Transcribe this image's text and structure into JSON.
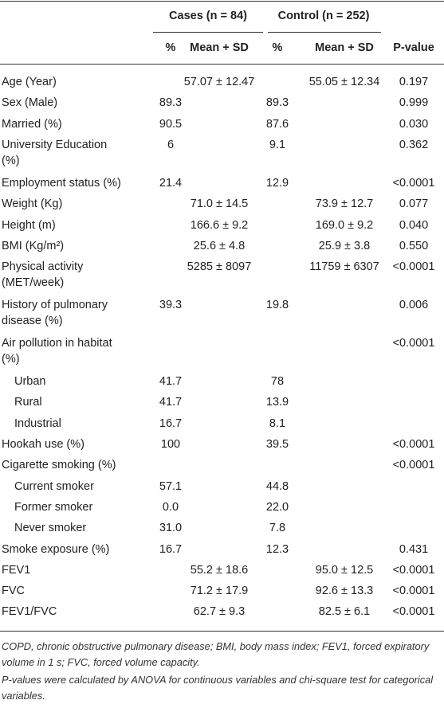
{
  "table": {
    "group_headers": [
      "Cases (n = 84)",
      "Control (n = 252)"
    ],
    "headers": [
      "%",
      "Mean + SD",
      "%",
      "Mean + SD",
      "P-value"
    ],
    "rows": [
      {
        "label": [
          "Age (Year)"
        ],
        "cells": [
          null,
          "57.07 ± 12.47",
          null,
          "55.05 ± 12.34",
          "0.197"
        ]
      },
      {
        "label": [
          "Sex (Male)"
        ],
        "cells": [
          "89.3",
          null,
          "89.3",
          null,
          "0.999"
        ]
      },
      {
        "label": [
          "Married (%)"
        ],
        "cells": [
          "90.5",
          null,
          "87.6",
          null,
          "0.030"
        ]
      },
      {
        "label": [
          "University Education",
          "(%)"
        ],
        "cells": [
          "6",
          null,
          "9.1",
          null,
          "0.362"
        ]
      },
      {
        "label": [
          "Employment status (%)"
        ],
        "cells": [
          "21.4",
          null,
          "12.9",
          null,
          "<0.0001"
        ]
      },
      {
        "label": [
          "Weight (Kg)"
        ],
        "cells": [
          null,
          "71.0 ± 14.5",
          null,
          "73.9 ± 12.7",
          "0.077"
        ]
      },
      {
        "label": [
          "Height (m)"
        ],
        "cells": [
          null,
          "166.6 ± 9.2",
          null,
          "169.0 ± 9.2",
          "0.040"
        ]
      },
      {
        "label": [
          "BMI (Kg/m²)"
        ],
        "cells": [
          null,
          "25.6 ± 4.8",
          null,
          "25.9 ± 3.8",
          "0.550"
        ]
      },
      {
        "label": [
          "Physical activity",
          "(MET/week)"
        ],
        "cells": [
          null,
          "5285 ± 8097",
          null,
          "11759 ± 6307",
          "<0.0001"
        ]
      },
      {
        "label": [
          "History of pulmonary",
          "disease (%)"
        ],
        "cells": [
          "39.3",
          null,
          "19.8",
          null,
          "0.006"
        ]
      },
      {
        "label": [
          "Air pollution in habitat",
          "(%)"
        ],
        "cells": [
          null,
          null,
          null,
          null,
          "<0.0001"
        ]
      },
      {
        "label": [
          "Urban"
        ],
        "indent": true,
        "cells": [
          "41.7",
          null,
          "78",
          null,
          null
        ]
      },
      {
        "label": [
          "Rural"
        ],
        "indent": true,
        "cells": [
          "41.7",
          null,
          "13.9",
          null,
          null
        ]
      },
      {
        "label": [
          "Industrial"
        ],
        "indent": true,
        "cells": [
          "16.7",
          null,
          "8.1",
          null,
          null
        ]
      },
      {
        "label": [
          "Hookah use (%)"
        ],
        "cells": [
          "100",
          null,
          "39.5",
          null,
          "<0.0001"
        ]
      },
      {
        "label": [
          "Cigarette smoking (%)"
        ],
        "cells": [
          null,
          null,
          null,
          null,
          "<0.0001"
        ]
      },
      {
        "label": [
          "Current smoker"
        ],
        "indent": true,
        "cells": [
          "57.1",
          null,
          "44.8",
          null,
          null
        ]
      },
      {
        "label": [
          "Former smoker"
        ],
        "indent": true,
        "cells": [
          "0.0",
          null,
          "22.0",
          null,
          null
        ]
      },
      {
        "label": [
          "Never smoker"
        ],
        "indent": true,
        "cells": [
          "31.0",
          null,
          "7.8",
          null,
          null
        ]
      },
      {
        "label": [
          "Smoke exposure (%)"
        ],
        "cells": [
          "16.7",
          null,
          "12.3",
          null,
          "0.431"
        ]
      },
      {
        "label": [
          "FEV1"
        ],
        "cells": [
          null,
          "55.2 ± 18.6",
          null,
          "95.0 ± 12.5",
          "<0.0001"
        ]
      },
      {
        "label": [
          "FVC"
        ],
        "cells": [
          null,
          "71.2 ± 17.9",
          null,
          "92.6 ± 13.3",
          "<0.0001"
        ]
      },
      {
        "label": [
          "FEV1/FVC"
        ],
        "cells": [
          null,
          "62.7 ± 9.3",
          null,
          "82.5 ± 6.1",
          "<0.0001"
        ]
      }
    ]
  },
  "footnotes": [
    "COPD, chronic obstructive pulmonary disease; BMI, body mass index; FEV1, forced expiratory volume in 1 s; FVC, forced volume capacity.",
    "P-values were calculated by ANOVA for continuous variables and chi-square test for categorical variables."
  ]
}
